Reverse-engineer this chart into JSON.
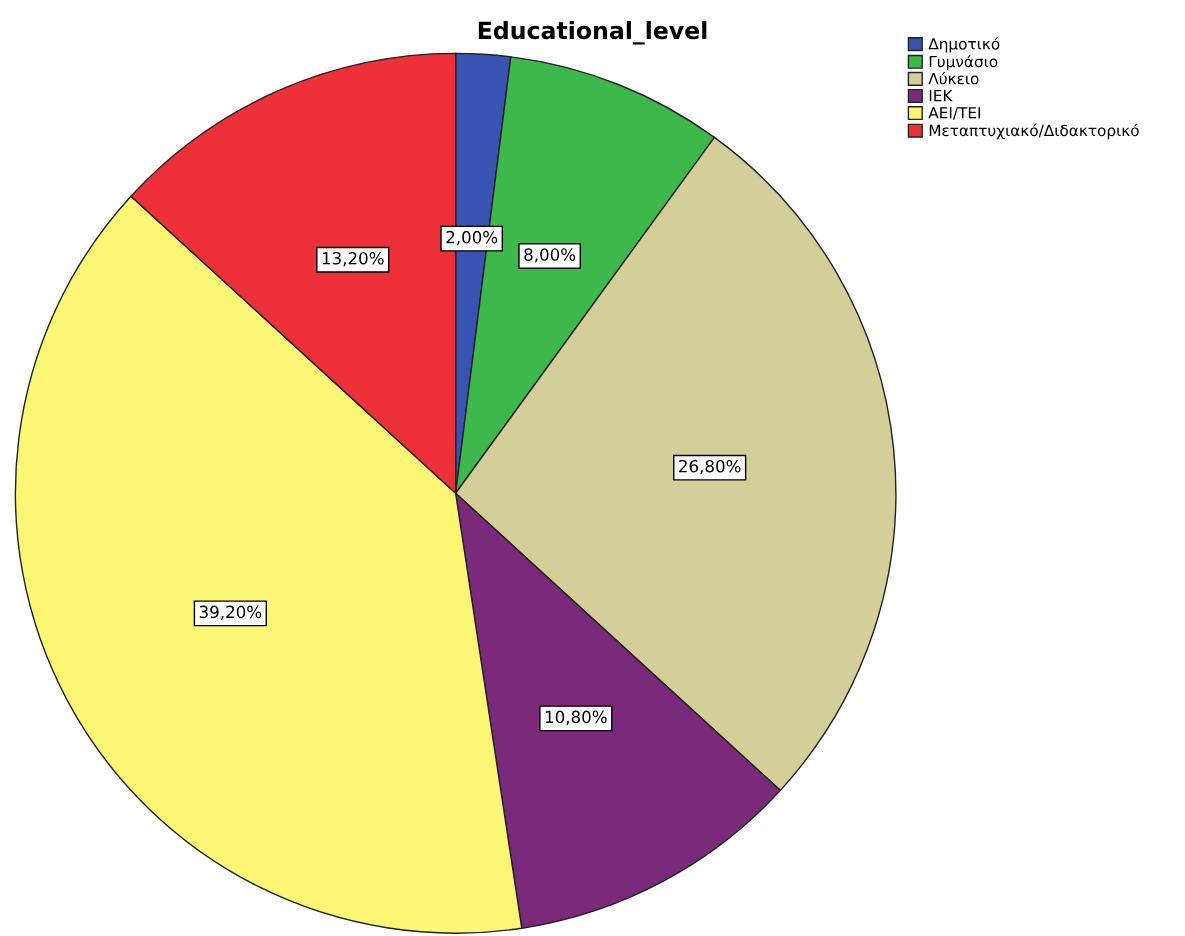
{
  "chart_data": {
    "type": "pie",
    "title": "Educational_level",
    "categories": [
      "Δημοτικό",
      "Γυμνάσιο",
      "Λύκειο",
      "ΙΕΚ",
      "ΑΕΙ/ΤΕΙ",
      "Μεταπτυχιακό/Διδακτορικό"
    ],
    "values": [
      2.0,
      8.0,
      26.8,
      10.8,
      39.2,
      13.2
    ],
    "value_labels": [
      "2,00%",
      "8,00%",
      "26,80%",
      "10,80%",
      "39,20%",
      "13,20%"
    ],
    "colors": [
      "#3953b3",
      "#3cb94a",
      "#d4cf98",
      "#7b2a7b",
      "#fbf674",
      "#ee3039"
    ],
    "legend": "top right"
  }
}
